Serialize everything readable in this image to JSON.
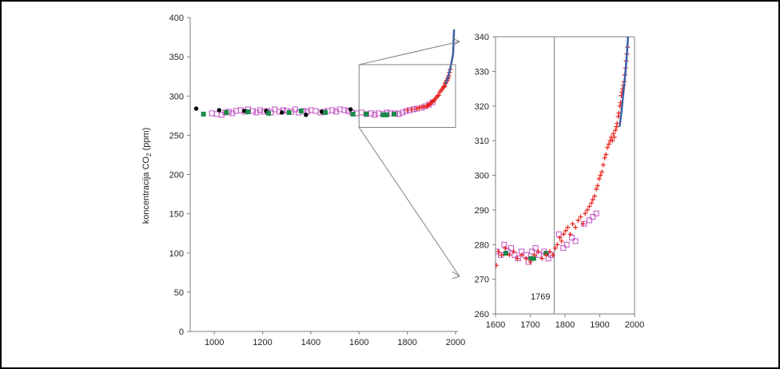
{
  "colors": {
    "icecore_law_dome": "#c04fc0",
    "icecore_black": "#000000",
    "icecore_green": "#1a8a4a",
    "firn_red": "#e8211d",
    "mauna_loa_blue": "#3c5fa8",
    "axis": "#7f7f7f",
    "zoom_lines": "#808080"
  },
  "chart_data": [
    {
      "type": "scatter",
      "ylabel_main": "koncentracija CO",
      "ylabel_sub": "2",
      "ylabel_unit": " (ppm)",
      "xlim": [
        900,
        2010
      ],
      "ylim": [
        0,
        400
      ],
      "x_ticks": [
        1000,
        1200,
        1400,
        1600,
        1800,
        2000
      ],
      "y_ticks": [
        0,
        50,
        100,
        150,
        200,
        250,
        300,
        350,
        400
      ],
      "grid": false,
      "zoom_box": {
        "x": [
          1600,
          2000
        ],
        "y": [
          260,
          340
        ]
      },
      "series": [
        {
          "marker": "open-square",
          "color": "#c04fc0",
          "x": [
            990,
            1010,
            1030,
            1045,
            1060,
            1075,
            1090,
            1110,
            1125,
            1140,
            1160,
            1175,
            1190,
            1205,
            1220,
            1235,
            1250,
            1270,
            1285,
            1300,
            1320,
            1335,
            1350,
            1370,
            1385,
            1400,
            1420,
            1440,
            1455,
            1470,
            1490,
            1505,
            1520,
            1540,
            1555,
            1570,
            1590,
            1610,
            1630,
            1650,
            1665,
            1680,
            1700,
            1715,
            1730,
            1750,
            1765,
            1780,
            1795,
            1810,
            1825,
            1840,
            1860,
            1875,
            1890,
            1905
          ],
          "y": [
            278,
            277,
            276,
            279,
            280,
            278,
            281,
            282,
            280,
            283,
            281,
            279,
            282,
            280,
            281,
            279,
            283,
            280,
            282,
            281,
            280,
            283,
            279,
            281,
            280,
            282,
            281,
            279,
            280,
            281,
            282,
            280,
            283,
            282,
            281,
            279,
            278,
            279,
            277,
            278,
            276,
            278,
            277,
            279,
            278,
            278,
            277,
            279,
            281,
            282,
            283,
            284,
            285,
            287,
            289,
            292
          ]
        },
        {
          "marker": "circle",
          "color": "#000000",
          "x": [
            925,
            1020,
            1125,
            1215,
            1280,
            1380,
            1445,
            1565
          ],
          "y": [
            284,
            282,
            281,
            281,
            279,
            276,
            280,
            283
          ]
        },
        {
          "marker": "square",
          "color": "#1a8a4a",
          "x": [
            955,
            1050,
            1140,
            1225,
            1310,
            1360,
            1460,
            1575,
            1630,
            1700,
            1715,
            1745
          ],
          "y": [
            277,
            279,
            280,
            278,
            279,
            281,
            279,
            277,
            277,
            276,
            276,
            277
          ]
        },
        {
          "marker": "plus",
          "color": "#e8211d",
          "x": [
            1800,
            1820,
            1840,
            1850,
            1860,
            1870,
            1880,
            1885,
            1890,
            1895,
            1900,
            1905,
            1910,
            1915,
            1920,
            1925,
            1930,
            1935,
            1940,
            1945,
            1950,
            1952,
            1955,
            1958,
            1960,
            1962,
            1965,
            1968,
            1970,
            1972,
            1975,
            1978
          ],
          "y": [
            282,
            283,
            284,
            285,
            286,
            286,
            287,
            288,
            289,
            290,
            292,
            293,
            294,
            296,
            298,
            300,
            301,
            305,
            307,
            309,
            311,
            312,
            313,
            316,
            317,
            319,
            320,
            322,
            324,
            326,
            330,
            334
          ]
        },
        {
          "marker": "line",
          "color": "#3c5fa8",
          "x": [
            1958,
            1962,
            1966,
            1970,
            1974,
            1978,
            1982,
            1986,
            1990,
            1994
          ],
          "y": [
            315,
            318,
            321,
            325,
            330,
            335,
            341,
            347,
            354,
            385
          ]
        }
      ]
    },
    {
      "type": "scatter",
      "xlim": [
        1600,
        2000
      ],
      "ylim": [
        260,
        340
      ],
      "x_ticks": [
        1600,
        1700,
        1800,
        1900,
        2000
      ],
      "y_ticks": [
        260,
        270,
        280,
        290,
        300,
        310,
        320,
        330,
        340
      ],
      "grid": false,
      "annotation_line_x": 1769,
      "annotation_text": "1769",
      "series": [
        {
          "marker": "open-square",
          "color": "#c04fc0",
          "x": [
            1603,
            1615,
            1625,
            1635,
            1645,
            1655,
            1665,
            1675,
            1688,
            1695,
            1705,
            1715,
            1725,
            1740,
            1752,
            1760,
            1782,
            1795,
            1805,
            1820,
            1830,
            1855,
            1870,
            1880,
            1890
          ],
          "y": [
            278,
            277,
            280,
            278,
            279,
            277,
            276,
            278,
            277,
            275,
            278,
            279,
            277,
            278,
            276,
            277,
            283,
            279,
            280,
            282,
            281,
            286,
            287,
            288,
            289
          ]
        },
        {
          "marker": "square",
          "color": "#1a8a4a",
          "x": [
            1630,
            1702,
            1710,
            1745
          ],
          "y": [
            277.5,
            276,
            276,
            277.5
          ]
        },
        {
          "marker": "plus",
          "color": "#e8211d",
          "x": [
            1602,
            1608,
            1617,
            1628,
            1640,
            1652,
            1663,
            1676,
            1688,
            1700,
            1712,
            1723,
            1734,
            1745,
            1756,
            1765,
            1772,
            1778,
            1785,
            1790,
            1796,
            1802,
            1808,
            1815,
            1822,
            1830,
            1838,
            1845,
            1852,
            1858,
            1864,
            1870,
            1876,
            1880,
            1885,
            1890,
            1894,
            1898,
            1902,
            1906,
            1910,
            1914,
            1918,
            1922,
            1926,
            1930,
            1933,
            1936,
            1939,
            1942,
            1945,
            1948,
            1950,
            1953,
            1955,
            1958,
            1960,
            1962,
            1964,
            1966,
            1968,
            1970,
            1972,
            1974,
            1976,
            1978,
            1980
          ],
          "y": [
            274,
            278,
            277,
            279,
            277,
            278,
            276,
            277,
            276,
            275,
            277,
            278,
            276,
            277,
            278,
            277,
            279,
            280,
            282,
            281,
            283,
            284,
            285,
            283,
            286,
            285,
            287,
            288,
            286,
            289,
            290,
            291,
            292,
            293,
            294,
            296,
            297,
            299,
            300,
            301,
            303,
            305,
            306,
            308,
            309,
            310,
            311,
            310,
            312,
            311,
            313,
            314,
            315,
            317,
            318,
            320,
            321,
            323,
            324,
            325,
            326,
            327,
            329,
            331,
            333,
            335,
            337
          ]
        },
        {
          "marker": "line",
          "color": "#3c5fa8",
          "x": [
            1957,
            1962,
            1966,
            1970,
            1974,
            1978,
            1982
          ],
          "y": [
            314,
            318,
            322,
            326,
            330,
            335,
            341
          ]
        }
      ]
    }
  ]
}
